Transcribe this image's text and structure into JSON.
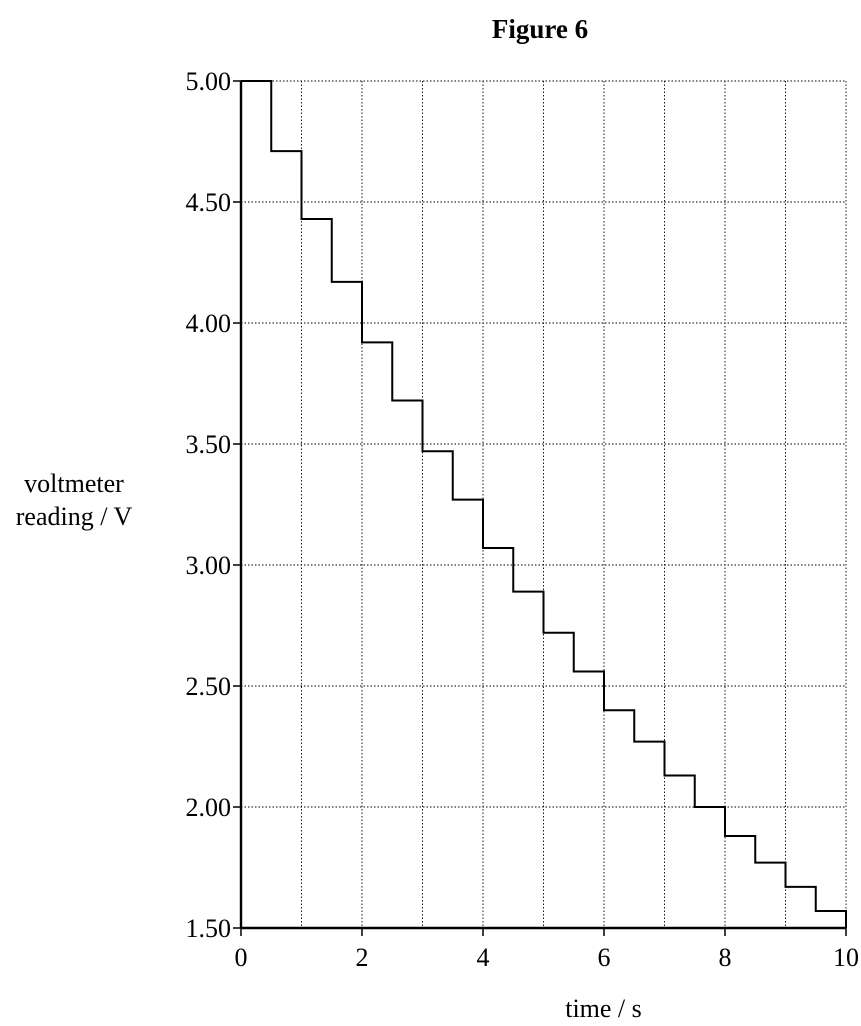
{
  "chart_data": {
    "type": "line",
    "title": "Figure 6",
    "xlabel": "time / s",
    "ylabel_lines": [
      "voltmeter",
      "reading / V"
    ],
    "xlim": [
      0,
      10
    ],
    "ylim": [
      1.5,
      5.0
    ],
    "x_ticks": [
      0,
      2,
      4,
      6,
      8,
      10
    ],
    "x_tick_labels": [
      "0",
      "2",
      "4",
      "6",
      "8",
      "10"
    ],
    "y_ticks": [
      1.5,
      2.0,
      2.5,
      3.0,
      3.5,
      4.0,
      4.5,
      5.0
    ],
    "y_tick_labels": [
      "1.50",
      "2.00",
      "2.50",
      "3.00",
      "3.50",
      "4.00",
      "4.50",
      "5.00"
    ],
    "grid": true,
    "step_interval_s": 0.5,
    "series": [
      {
        "style": "step",
        "x": [
          0,
          0.5,
          1.0,
          1.5,
          2.0,
          2.5,
          3.0,
          3.5,
          4.0,
          4.5,
          5.0,
          5.5,
          6.0,
          6.5,
          7.0,
          7.5,
          8.0,
          8.5,
          9.0,
          9.5
        ],
        "values": [
          5.0,
          4.71,
          4.43,
          4.17,
          3.92,
          3.68,
          3.47,
          3.27,
          3.07,
          2.89,
          2.72,
          2.56,
          2.4,
          2.27,
          2.13,
          2.0,
          1.88,
          1.77,
          1.67,
          1.57
        ]
      }
    ]
  }
}
